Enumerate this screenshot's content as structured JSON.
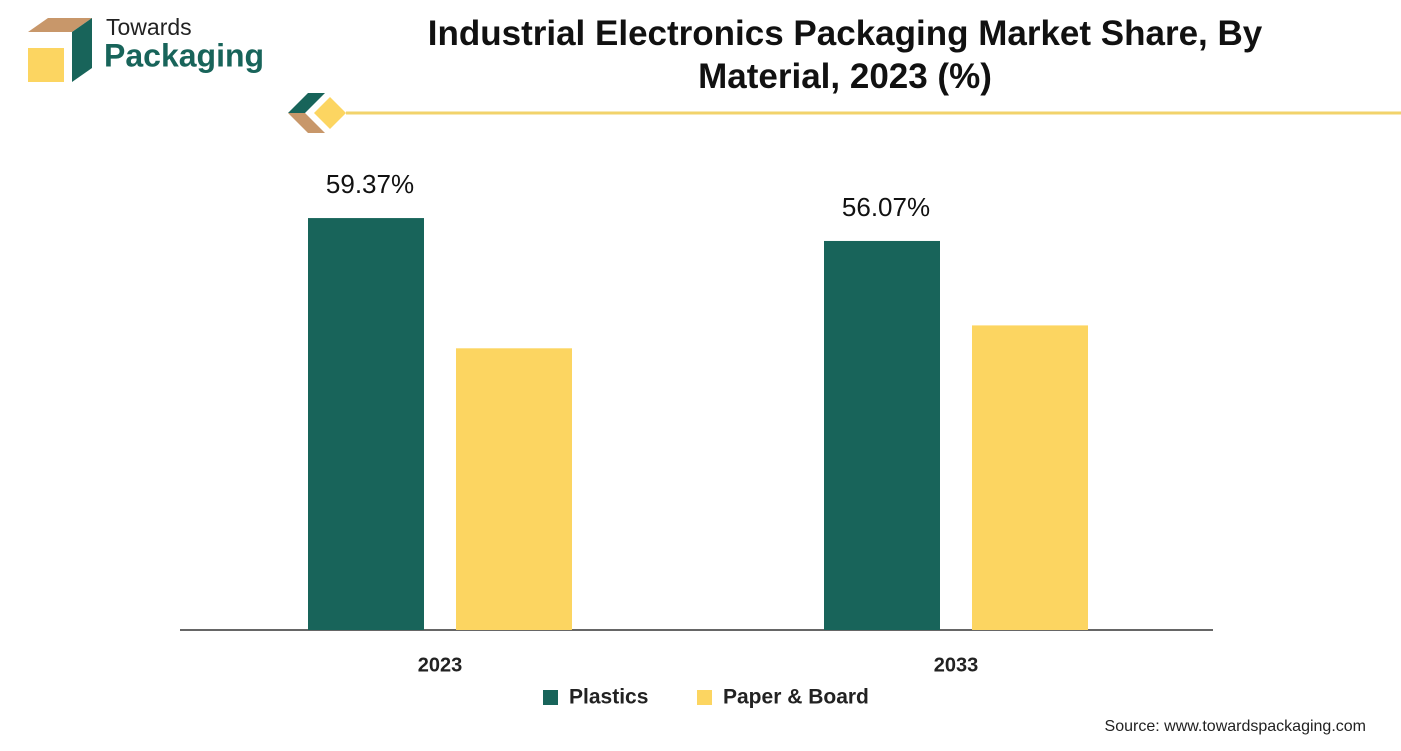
{
  "logo": {
    "line1": "Towards",
    "line2": "Packaging"
  },
  "source": "Source: www.towardspackaging.com",
  "chart_data": {
    "type": "bar",
    "title": "Industrial Electronics Packaging Market Share, By Material, 2023 (%)",
    "categories": [
      "2023",
      "2033"
    ],
    "series": [
      {
        "name": "Plastics",
        "color": "#18645a",
        "values": [
          59.37,
          56.07
        ],
        "value_labels": [
          "59.37%",
          "56.07%"
        ]
      },
      {
        "name": "Paper & Board",
        "color": "#fcd561",
        "values": [
          40.6,
          43.9
        ]
      }
    ],
    "ylim": [
      0,
      65
    ],
    "grid": false
  }
}
